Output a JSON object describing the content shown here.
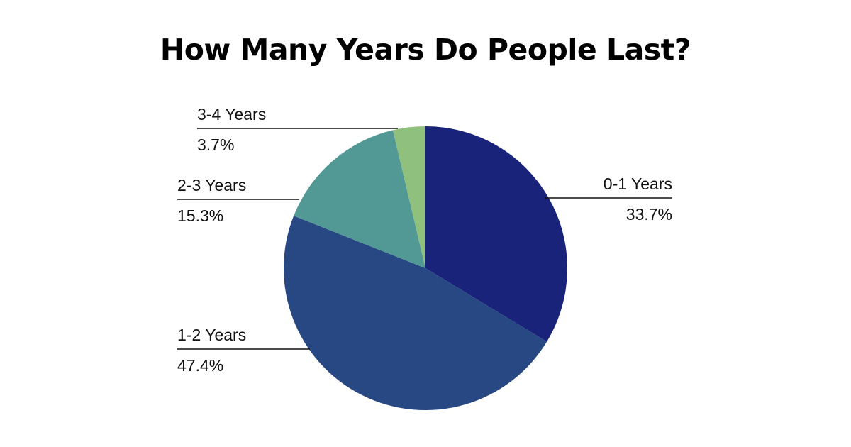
{
  "chart_data": {
    "type": "pie",
    "title": "How Many Years Do People Last?",
    "slices": [
      {
        "label": "0-1 Years",
        "value": 33.7,
        "display": "33.7%",
        "color": "#1a237a"
      },
      {
        "label": "1-2 Years",
        "value": 47.4,
        "display": "47.4%",
        "color": "#284884"
      },
      {
        "label": "2-3 Years",
        "value": 15.3,
        "display": "15.3%",
        "color": "#529995"
      },
      {
        "label": "3-4 Years",
        "value": 3.7,
        "display": "3.7%",
        "color": "#90c07e"
      }
    ],
    "start_angle": "12 o'clock",
    "direction": "clockwise",
    "legend": "none (callout labels beside slices)"
  }
}
